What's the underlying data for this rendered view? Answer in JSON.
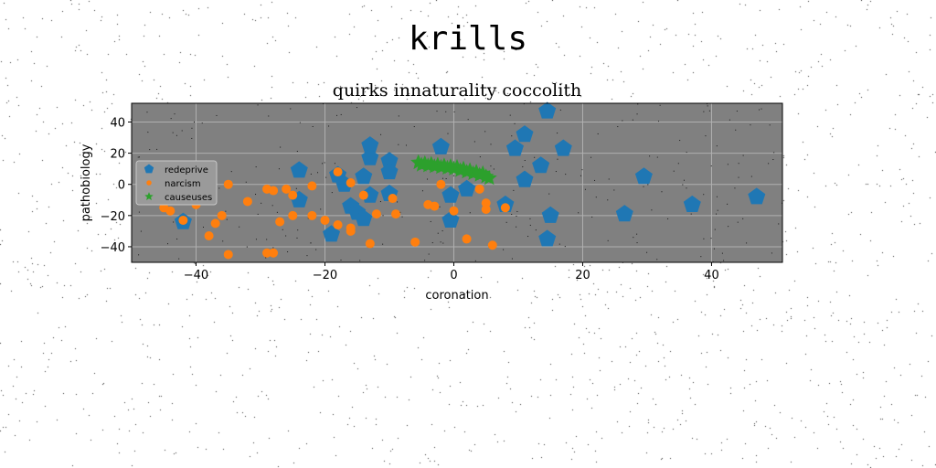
{
  "suptitle": "krills",
  "chart_data": {
    "type": "scatter",
    "title": "quirks innaturality coccolith",
    "xlabel": "coronation",
    "ylabel": "pathobiology",
    "xlim": [
      -50,
      51
    ],
    "ylim": [
      -50,
      52
    ],
    "xticks": [
      -40,
      -20,
      0,
      20,
      40
    ],
    "yticks": [
      -40,
      -20,
      0,
      20,
      40
    ],
    "grid": true,
    "legend_position": "center-left",
    "colors": {
      "background": "#808080",
      "grid": "#b0b0b0"
    },
    "series": [
      {
        "name": "redeprive",
        "marker": "pentagon",
        "color": "#1f77b4",
        "points": [
          [
            -42,
            -24
          ],
          [
            -24,
            9
          ],
          [
            -24,
            -10
          ],
          [
            -18,
            6
          ],
          [
            -17,
            0
          ],
          [
            -16,
            -14
          ],
          [
            -15,
            -18
          ],
          [
            -14,
            -22
          ],
          [
            -14,
            5
          ],
          [
            -13,
            25
          ],
          [
            -13,
            17
          ],
          [
            -13,
            -7
          ],
          [
            -10,
            15
          ],
          [
            -10,
            8
          ],
          [
            -10,
            -6
          ],
          [
            -19,
            -32
          ],
          [
            -2,
            24
          ],
          [
            -0.5,
            -7
          ],
          [
            -0.5,
            -23
          ],
          [
            2,
            -3
          ],
          [
            8,
            -13
          ],
          [
            9.5,
            23
          ],
          [
            11,
            3
          ],
          [
            11,
            32
          ],
          [
            13.5,
            12
          ],
          [
            14.5,
            47
          ],
          [
            14.5,
            -35
          ],
          [
            15,
            -20
          ],
          [
            17,
            23
          ],
          [
            26.5,
            -19
          ],
          [
            29.5,
            5
          ],
          [
            37,
            -13
          ],
          [
            47,
            -8
          ]
        ]
      },
      {
        "name": "narcism",
        "marker": "circle",
        "color": "#ff7f0e",
        "points": [
          [
            -45,
            -15
          ],
          [
            -44,
            -17
          ],
          [
            -42,
            -23
          ],
          [
            -40,
            -13
          ],
          [
            -38,
            -33
          ],
          [
            -37,
            -25
          ],
          [
            -36,
            -20
          ],
          [
            -35,
            0
          ],
          [
            -35,
            -45
          ],
          [
            -32,
            -11
          ],
          [
            -29,
            -3
          ],
          [
            -29,
            -44
          ],
          [
            -28,
            -4
          ],
          [
            -28,
            -44
          ],
          [
            -27,
            -24
          ],
          [
            -26,
            -3
          ],
          [
            -25,
            -7
          ],
          [
            -25,
            -20
          ],
          [
            -22,
            -1
          ],
          [
            -22,
            -20
          ],
          [
            -20,
            -23
          ],
          [
            -18,
            8
          ],
          [
            -18,
            -26
          ],
          [
            -16,
            1
          ],
          [
            -16,
            -28
          ],
          [
            -16,
            -30
          ],
          [
            -14,
            -7
          ],
          [
            -13,
            -38
          ],
          [
            -12,
            -19
          ],
          [
            -9.5,
            -9
          ],
          [
            -9,
            -19
          ],
          [
            -6,
            -37
          ],
          [
            -4,
            -13
          ],
          [
            -3,
            -14
          ],
          [
            -2,
            0
          ],
          [
            0,
            -17
          ],
          [
            2,
            -35
          ],
          [
            4,
            -3
          ],
          [
            5,
            -12
          ],
          [
            5,
            -16
          ],
          [
            6,
            -39
          ],
          [
            8,
            -15
          ]
        ]
      },
      {
        "name": "causeuses",
        "marker": "star",
        "color": "#2ca02c",
        "points": [
          [
            -5.5,
            14
          ],
          [
            -5,
            12.5
          ],
          [
            -4.5,
            13.5
          ],
          [
            -4,
            12
          ],
          [
            -3.5,
            13
          ],
          [
            -3,
            11.5
          ],
          [
            -2.5,
            12.5
          ],
          [
            -2,
            11
          ],
          [
            -1.5,
            12
          ],
          [
            -1,
            10.5
          ],
          [
            -0.5,
            11.5
          ],
          [
            0,
            10
          ],
          [
            0.5,
            11
          ],
          [
            1,
            9
          ],
          [
            1.5,
            10
          ],
          [
            2,
            8
          ],
          [
            2.5,
            9
          ],
          [
            3,
            7
          ],
          [
            3.5,
            8
          ],
          [
            4,
            6
          ],
          [
            4.5,
            7
          ],
          [
            5,
            5
          ],
          [
            5.5,
            4
          ]
        ]
      }
    ]
  }
}
